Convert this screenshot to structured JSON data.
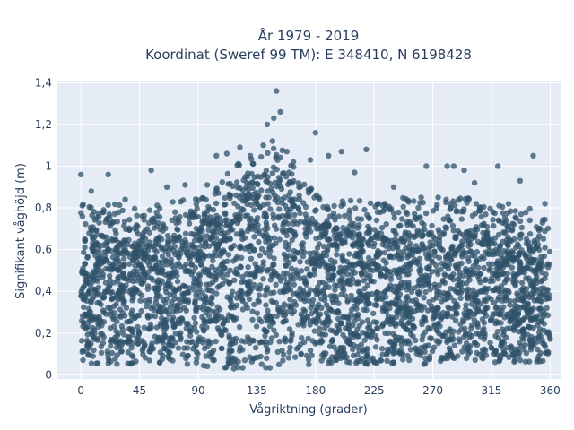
{
  "chart_data": {
    "type": "scatter",
    "title": "År 1979 - 2019",
    "subtitle": "Koordinat (Sweref 99 TM): E 348410, N 6198428",
    "xlabel": "Vågriktning (grader)",
    "ylabel": "Signifikant våghöjd (m)",
    "xlim": [
      -18,
      368
    ],
    "ylim": [
      -0.02,
      1.41
    ],
    "x_ticks": [
      0,
      45,
      90,
      135,
      180,
      225,
      270,
      315,
      360
    ],
    "x_tick_labels": [
      "0",
      "45",
      "90",
      "135",
      "180",
      "225",
      "270",
      "315",
      "360"
    ],
    "y_ticks": [
      0,
      0.2,
      0.4,
      0.6,
      0.8,
      1.0,
      1.2,
      1.4
    ],
    "y_tick_labels": [
      "0",
      "0,2",
      "0,4",
      "0,6",
      "0,8",
      "1",
      "1,2",
      "1,4"
    ],
    "grid": true,
    "legend": "none",
    "colors": {
      "marker": "#2f5269",
      "plot_bg": "#e5ecf6",
      "grid": "#ffffff",
      "text": "#2a3f5f"
    },
    "dense_band": [
      {
        "x": 0,
        "y_min": 0.05,
        "y_max": 0.68
      },
      {
        "x": 45,
        "y_min": 0.05,
        "y_max": 0.65
      },
      {
        "x": 80,
        "y_min": 0.05,
        "y_max": 0.68
      },
      {
        "x": 100,
        "y_min": 0.03,
        "y_max": 0.75
      },
      {
        "x": 120,
        "y_min": 0.02,
        "y_max": 0.85
      },
      {
        "x": 135,
        "y_min": 0.02,
        "y_max": 0.9
      },
      {
        "x": 150,
        "y_min": 0.03,
        "y_max": 0.95
      },
      {
        "x": 165,
        "y_min": 0.04,
        "y_max": 0.85
      },
      {
        "x": 180,
        "y_min": 0.05,
        "y_max": 0.72
      },
      {
        "x": 225,
        "y_min": 0.05,
        "y_max": 0.68
      },
      {
        "x": 270,
        "y_min": 0.05,
        "y_max": 0.7
      },
      {
        "x": 315,
        "y_min": 0.05,
        "y_max": 0.68
      },
      {
        "x": 360,
        "y_min": 0.06,
        "y_max": 0.62
      }
    ],
    "outliers": [
      {
        "x": 0,
        "y": 0.96
      },
      {
        "x": 8,
        "y": 0.88
      },
      {
        "x": 21,
        "y": 0.96
      },
      {
        "x": 34,
        "y": 0.84
      },
      {
        "x": 54,
        "y": 0.98
      },
      {
        "x": 66,
        "y": 0.9
      },
      {
        "x": 80,
        "y": 0.91
      },
      {
        "x": 97,
        "y": 0.91
      },
      {
        "x": 104,
        "y": 1.05
      },
      {
        "x": 112,
        "y": 1.06
      },
      {
        "x": 122,
        "y": 1.09
      },
      {
        "x": 130,
        "y": 1.05
      },
      {
        "x": 140,
        "y": 1.1
      },
      {
        "x": 143,
        "y": 1.2
      },
      {
        "x": 147,
        "y": 1.12
      },
      {
        "x": 148,
        "y": 1.23
      },
      {
        "x": 150,
        "y": 1.36
      },
      {
        "x": 153,
        "y": 1.26
      },
      {
        "x": 158,
        "y": 1.07
      },
      {
        "x": 163,
        "y": 1.02
      },
      {
        "x": 176,
        "y": 1.03
      },
      {
        "x": 180,
        "y": 1.16
      },
      {
        "x": 190,
        "y": 1.05
      },
      {
        "x": 200,
        "y": 1.07
      },
      {
        "x": 210,
        "y": 0.97
      },
      {
        "x": 219,
        "y": 1.08
      },
      {
        "x": 240,
        "y": 0.9
      },
      {
        "x": 265,
        "y": 1.0
      },
      {
        "x": 281,
        "y": 1.0
      },
      {
        "x": 286,
        "y": 1.0
      },
      {
        "x": 294,
        "y": 0.98
      },
      {
        "x": 302,
        "y": 0.92
      },
      {
        "x": 320,
        "y": 1.0
      },
      {
        "x": 337,
        "y": 0.93
      },
      {
        "x": 347,
        "y": 1.05
      },
      {
        "x": 356,
        "y": 0.82
      }
    ]
  }
}
